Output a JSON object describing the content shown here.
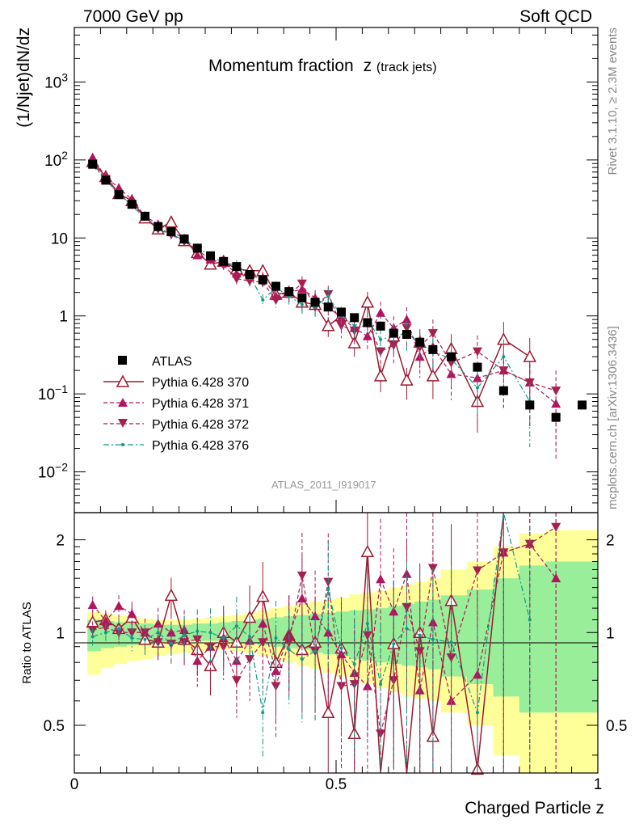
{
  "header": {
    "left": "7000 GeV pp",
    "right": "Soft QCD"
  },
  "side_labels": {
    "rivet": "Rivet 3.1.10, ≥ 2.3M events",
    "mcplots": "mcplots.cern.ch [arXiv:1306.3436]"
  },
  "watermark": "ATLAS_2011_I919017",
  "colors": {
    "data": "#000000",
    "p370": "#9b1b30",
    "p371": "#b01560",
    "p372": "#a81e50",
    "p376": "#119988",
    "band_yellow": "#ffff99",
    "band_green": "#99ee99"
  },
  "chart_data": [
    {
      "type": "scatter",
      "title": "Momentum fraction",
      "title_symbol": "z",
      "title_sub": "(track jets)",
      "ylabel": "(1/Njet)dN/dz",
      "xlim": [
        0,
        1
      ],
      "ylim": [
        0.003,
        5000
      ],
      "yscale": "log",
      "y_tick_labels": [
        {
          "value": 0.01,
          "base": "10",
          "exp": "−2"
        },
        {
          "value": 0.1,
          "base": "10",
          "exp": "−1"
        },
        {
          "value": 1,
          "base": "1",
          "exp": ""
        },
        {
          "value": 10,
          "base": "10",
          "exp": ""
        },
        {
          "value": 100,
          "base": "10",
          "exp": "2"
        },
        {
          "value": 1000,
          "base": "10",
          "exp": "3"
        }
      ],
      "legend_position": "left-middle",
      "series": [
        {
          "name": "ATLAS",
          "marker": "square",
          "x": [
            0.035,
            0.06,
            0.085,
            0.11,
            0.135,
            0.16,
            0.185,
            0.21,
            0.235,
            0.26,
            0.285,
            0.31,
            0.335,
            0.36,
            0.385,
            0.41,
            0.435,
            0.46,
            0.485,
            0.51,
            0.535,
            0.56,
            0.585,
            0.61,
            0.635,
            0.66,
            0.685,
            0.72,
            0.77,
            0.82,
            0.87,
            0.92,
            0.97
          ],
          "y": [
            88,
            55,
            36,
            27,
            19,
            14,
            12,
            9.7,
            7.4,
            5.9,
            5.0,
            4.3,
            3.4,
            2.9,
            2.4,
            2.05,
            1.7,
            1.5,
            1.3,
            1.12,
            0.95,
            0.82,
            0.74,
            0.6,
            0.58,
            0.46,
            0.37,
            0.3,
            0.22,
            0.11,
            0.072,
            0.05,
            0.072
          ]
        },
        {
          "name": "Pythia 6.428 370",
          "marker": "triangle-up-open",
          "line": "solid",
          "x": [
            0.035,
            0.06,
            0.085,
            0.11,
            0.135,
            0.16,
            0.185,
            0.21,
            0.235,
            0.26,
            0.285,
            0.31,
            0.335,
            0.36,
            0.385,
            0.41,
            0.435,
            0.46,
            0.485,
            0.51,
            0.535,
            0.56,
            0.585,
            0.61,
            0.635,
            0.66,
            0.685,
            0.72,
            0.77,
            0.82,
            0.87
          ],
          "y": [
            95,
            61,
            37,
            30,
            18,
            13,
            16,
            9.2,
            6.5,
            4.6,
            5.0,
            4.0,
            3.8,
            3.8,
            1.9,
            2.0,
            1.5,
            1.4,
            0.75,
            1.0,
            0.45,
            1.5,
            0.17,
            0.55,
            0.15,
            0.46,
            0.17,
            0.38,
            0.08,
            0.5,
            0.3
          ]
        },
        {
          "name": "Pythia 6.428 371",
          "marker": "triangle-up",
          "line": "dashed",
          "x": [
            0.035,
            0.06,
            0.085,
            0.11,
            0.135,
            0.16,
            0.185,
            0.21,
            0.235,
            0.26,
            0.285,
            0.31,
            0.335,
            0.36,
            0.385,
            0.41,
            0.435,
            0.46,
            0.485,
            0.51,
            0.535,
            0.56,
            0.585,
            0.61,
            0.635,
            0.66,
            0.685,
            0.72,
            0.77,
            0.82,
            0.87,
            0.92
          ],
          "y": [
            108,
            60,
            44,
            31,
            19,
            15,
            12,
            9.9,
            6.0,
            5.3,
            4.8,
            3.5,
            3.2,
            3.1,
            1.8,
            2.0,
            2.2,
            1.7,
            1.3,
            0.95,
            0.7,
            0.55,
            1.1,
            0.7,
            0.9,
            0.3,
            0.4,
            0.18,
            0.16,
            0.2,
            0.14,
            0.075
          ]
        },
        {
          "name": "Pythia 6.428 372",
          "marker": "triangle-down",
          "line": "dashed",
          "x": [
            0.035,
            0.06,
            0.085,
            0.11,
            0.135,
            0.16,
            0.185,
            0.21,
            0.235,
            0.26,
            0.285,
            0.31,
            0.335,
            0.36,
            0.385,
            0.41,
            0.435,
            0.46,
            0.485,
            0.51,
            0.535,
            0.56,
            0.585,
            0.61,
            0.635,
            0.66,
            0.685,
            0.72,
            0.77,
            0.82,
            0.87,
            0.92
          ],
          "y": [
            90,
            57,
            36,
            27,
            19,
            13,
            11,
            9.0,
            7.0,
            5.3,
            4.5,
            3.0,
            2.8,
            2.7,
            1.6,
            1.9,
            2.6,
            1.3,
            1.9,
            0.75,
            0.65,
            0.8,
            0.35,
            0.42,
            0.7,
            0.4,
            0.6,
            0.25,
            0.35,
            0.2,
            0.14,
            0.11
          ]
        },
        {
          "name": "Pythia 6.428 376",
          "marker": "dot",
          "line": "dashdot",
          "x": [
            0.035,
            0.06,
            0.085,
            0.11,
            0.135,
            0.16,
            0.185,
            0.21,
            0.235,
            0.26,
            0.285,
            0.31,
            0.335,
            0.36,
            0.385,
            0.41,
            0.435,
            0.46,
            0.485,
            0.51,
            0.535,
            0.56,
            0.585,
            0.61,
            0.635,
            0.66,
            0.685,
            0.72,
            0.77,
            0.82,
            0.87
          ],
          "y": [
            85,
            55,
            37,
            26,
            18,
            14,
            11,
            9.5,
            7.5,
            5.9,
            4.8,
            4.5,
            3.3,
            1.6,
            2.3,
            1.8,
            1.4,
            1.3,
            1.8,
            1.0,
            0.75,
            0.88,
            0.5,
            0.55,
            0.6,
            0.45,
            0.35,
            0.28,
            0.12,
            0.3,
            0.08
          ]
        }
      ]
    },
    {
      "type": "line",
      "xlabel": "Charged Particle z",
      "ylabel": "Ratio to ATLAS",
      "xlim": [
        0,
        1
      ],
      "ylim": [
        0.35,
        2.45
      ],
      "yscale": "log",
      "y_ticks": [
        0.5,
        1,
        2
      ],
      "y_tick_labels": [
        "0.5",
        "1",
        "2"
      ],
      "x_ticks": [
        0,
        0.5,
        1
      ],
      "x_tick_labels": [
        "0",
        "0.5",
        "1"
      ],
      "uncertainty_bands": {
        "edges": [
          0.025,
          0.05,
          0.075,
          0.1,
          0.125,
          0.15,
          0.175,
          0.2,
          0.225,
          0.25,
          0.275,
          0.3,
          0.325,
          0.35,
          0.375,
          0.4,
          0.425,
          0.45,
          0.475,
          0.5,
          0.525,
          0.55,
          0.575,
          0.6,
          0.625,
          0.65,
          0.675,
          0.7,
          0.75,
          0.8,
          0.85,
          0.9,
          0.95,
          1.0
        ],
        "yellow_low": [
          0.73,
          0.77,
          0.79,
          0.81,
          0.82,
          0.84,
          0.85,
          0.86,
          0.87,
          0.88,
          0.88,
          0.87,
          0.86,
          0.84,
          0.82,
          0.8,
          0.78,
          0.76,
          0.74,
          0.72,
          0.7,
          0.68,
          0.66,
          0.64,
          0.62,
          0.61,
          0.6,
          0.55,
          0.5,
          0.4,
          0.33,
          0.33,
          0.33
        ],
        "yellow_high": [
          1.17,
          1.15,
          1.13,
          1.12,
          1.11,
          1.1,
          1.1,
          1.1,
          1.11,
          1.12,
          1.13,
          1.14,
          1.16,
          1.18,
          1.2,
          1.22,
          1.24,
          1.26,
          1.28,
          1.3,
          1.33,
          1.35,
          1.37,
          1.4,
          1.43,
          1.46,
          1.5,
          1.6,
          1.7,
          1.9,
          2.1,
          2.15,
          2.15
        ],
        "green_low": [
          0.87,
          0.89,
          0.9,
          0.91,
          0.92,
          0.93,
          0.93,
          0.94,
          0.94,
          0.94,
          0.94,
          0.93,
          0.92,
          0.91,
          0.9,
          0.89,
          0.88,
          0.86,
          0.85,
          0.84,
          0.82,
          0.81,
          0.8,
          0.79,
          0.78,
          0.77,
          0.76,
          0.72,
          0.68,
          0.62,
          0.55,
          0.55,
          0.55
        ],
        "green_high": [
          1.1,
          1.09,
          1.08,
          1.07,
          1.07,
          1.06,
          1.06,
          1.06,
          1.07,
          1.07,
          1.08,
          1.09,
          1.1,
          1.11,
          1.12,
          1.13,
          1.14,
          1.15,
          1.16,
          1.17,
          1.18,
          1.19,
          1.2,
          1.22,
          1.24,
          1.26,
          1.28,
          1.32,
          1.38,
          1.5,
          1.65,
          1.7,
          1.7
        ]
      },
      "series": [
        {
          "name": "Pythia 6.428 370",
          "x": [
            0.035,
            0.06,
            0.085,
            0.11,
            0.135,
            0.16,
            0.185,
            0.21,
            0.235,
            0.26,
            0.285,
            0.31,
            0.335,
            0.36,
            0.385,
            0.41,
            0.435,
            0.46,
            0.485,
            0.51,
            0.535,
            0.56,
            0.585,
            0.61,
            0.635,
            0.66,
            0.685,
            0.72,
            0.77,
            0.82
          ],
          "y": [
            1.08,
            1.1,
            1.03,
            1.12,
            0.95,
            0.93,
            1.32,
            0.95,
            0.88,
            0.78,
            1.0,
            0.93,
            1.12,
            1.31,
            0.8,
            0.98,
            0.88,
            0.93,
            0.55,
            0.89,
            0.47,
            1.83,
            0.23,
            0.92,
            0.26,
            1.0,
            0.46,
            1.27,
            0.36,
            4.5
          ]
        },
        {
          "name": "Pythia 6.428 371",
          "x": [
            0.035,
            0.06,
            0.085,
            0.11,
            0.135,
            0.16,
            0.185,
            0.21,
            0.235,
            0.26,
            0.285,
            0.31,
            0.335,
            0.36,
            0.385,
            0.41,
            0.435,
            0.46,
            0.485,
            0.51,
            0.535,
            0.56,
            0.585,
            0.61,
            0.635,
            0.66,
            0.685,
            0.72,
            0.77,
            0.82,
            0.87,
            0.92
          ],
          "y": [
            1.23,
            1.09,
            1.22,
            1.15,
            1.0,
            1.07,
            1.0,
            1.02,
            0.81,
            0.9,
            0.96,
            0.81,
            0.94,
            1.07,
            0.75,
            0.98,
            1.29,
            1.13,
            1.0,
            0.85,
            0.74,
            0.67,
            1.49,
            1.17,
            1.55,
            0.65,
            1.08,
            0.6,
            0.73,
            1.82,
            1.94,
            1.5
          ]
        },
        {
          "name": "Pythia 6.428 372",
          "x": [
            0.035,
            0.06,
            0.085,
            0.11,
            0.135,
            0.16,
            0.185,
            0.21,
            0.235,
            0.26,
            0.285,
            0.31,
            0.335,
            0.36,
            0.385,
            0.41,
            0.435,
            0.46,
            0.485,
            0.51,
            0.535,
            0.56,
            0.585,
            0.61,
            0.635,
            0.66,
            0.685,
            0.72,
            0.77,
            0.82,
            0.87,
            0.92
          ],
          "y": [
            1.02,
            1.04,
            1.0,
            1.0,
            1.0,
            0.93,
            0.92,
            0.93,
            0.95,
            0.9,
            0.9,
            0.7,
            0.82,
            0.93,
            0.67,
            0.93,
            1.53,
            0.87,
            1.46,
            0.67,
            0.68,
            0.98,
            0.47,
            0.7,
            1.21,
            0.87,
            1.62,
            0.83,
            1.59,
            1.82,
            1.94,
            2.2
          ]
        },
        {
          "name": "Pythia 6.428 376",
          "x": [
            0.035,
            0.06,
            0.085,
            0.11,
            0.135,
            0.16,
            0.185,
            0.21,
            0.235,
            0.26,
            0.285,
            0.31,
            0.335,
            0.36,
            0.385,
            0.41,
            0.435,
            0.46,
            0.485,
            0.51,
            0.535,
            0.56,
            0.585,
            0.61,
            0.635,
            0.66,
            0.685,
            0.72,
            0.77,
            0.82,
            0.87
          ],
          "y": [
            0.97,
            1.0,
            1.03,
            0.96,
            0.95,
            1.0,
            0.92,
            0.98,
            1.01,
            1.0,
            0.96,
            1.05,
            0.97,
            0.55,
            0.96,
            0.88,
            0.82,
            0.87,
            1.38,
            0.89,
            0.79,
            1.07,
            0.68,
            0.92,
            1.03,
            0.98,
            0.95,
            0.93,
            0.55,
            2.7,
            1.1
          ]
        }
      ]
    }
  ]
}
